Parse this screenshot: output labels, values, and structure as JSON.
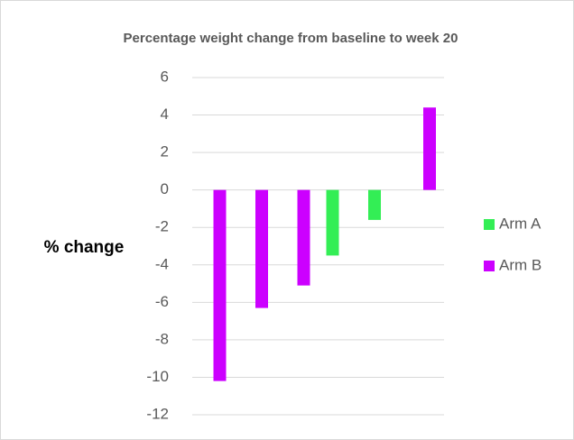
{
  "chart_data": {
    "type": "bar",
    "title": "Percentage weight change from baseline to week 20",
    "y_label": "% change",
    "categories": [
      null,
      null,
      null,
      null,
      null,
      null
    ],
    "series": [
      {
        "name": "Arm A",
        "color": "#33ee55",
        "values": [
          null,
          null,
          null,
          -3.5,
          -1.6,
          null
        ]
      },
      {
        "name": "Arm B",
        "color": "#cc00ff",
        "values": [
          -10.2,
          -6.3,
          -5.1,
          null,
          null,
          4.4
        ]
      }
    ],
    "ylim": [
      -12,
      6
    ],
    "yticks": [
      -12,
      -10,
      -8,
      -6,
      -4,
      -2,
      0,
      2,
      4,
      6
    ],
    "grid": true,
    "legend": "right"
  }
}
